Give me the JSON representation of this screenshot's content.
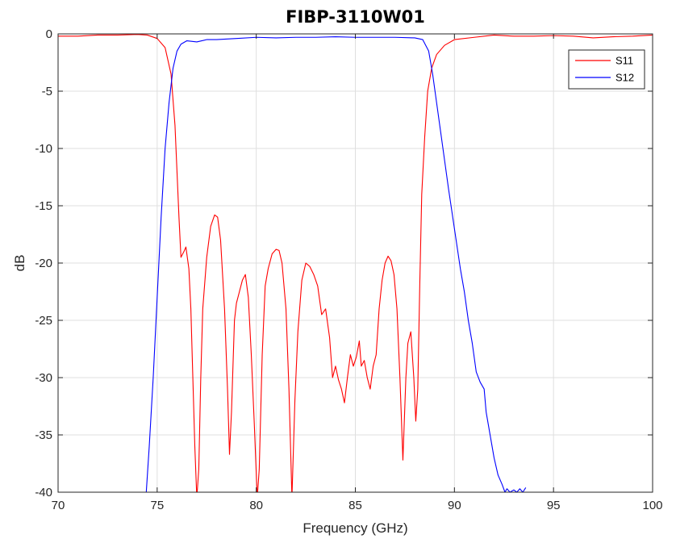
{
  "chart_data": {
    "type": "line",
    "title": "FIBP-3110W01",
    "xlabel": "Frequency (GHz)",
    "ylabel": "dB",
    "xlim": [
      70,
      100
    ],
    "ylim": [
      -40,
      0
    ],
    "xticks": [
      70,
      75,
      80,
      85,
      90,
      95,
      100
    ],
    "yticks": [
      0,
      -5,
      -10,
      -15,
      -20,
      -25,
      -30,
      -35,
      -40
    ],
    "xtick_labels": [
      "70",
      "75",
      "80",
      "85",
      "90",
      "95",
      "100"
    ],
    "ytick_labels": [
      "0",
      "-5",
      "-10",
      "-15",
      "-20",
      "-25",
      "-30",
      "-35",
      "-40"
    ],
    "grid": true,
    "legend_position": "top-right",
    "series": [
      {
        "name": "S11",
        "color": "#ff0000",
        "points": [
          [
            70,
            -0.2
          ],
          [
            71,
            -0.2
          ],
          [
            72,
            -0.1
          ],
          [
            73,
            -0.1
          ],
          [
            74,
            -0.05
          ],
          [
            74.5,
            -0.1
          ],
          [
            75,
            -0.4
          ],
          [
            75.4,
            -1.2
          ],
          [
            75.7,
            -3.5
          ],
          [
            75.9,
            -8
          ],
          [
            76,
            -12
          ],
          [
            76.1,
            -16
          ],
          [
            76.2,
            -19.5
          ],
          [
            76.35,
            -19
          ],
          [
            76.45,
            -18.6
          ],
          [
            76.6,
            -20.5
          ],
          [
            76.7,
            -24
          ],
          [
            76.8,
            -30
          ],
          [
            76.9,
            -36
          ],
          [
            77,
            -40.5
          ],
          [
            77.1,
            -38
          ],
          [
            77.2,
            -30
          ],
          [
            77.3,
            -24
          ],
          [
            77.5,
            -19.5
          ],
          [
            77.7,
            -16.8
          ],
          [
            77.9,
            -15.8
          ],
          [
            78.05,
            -16
          ],
          [
            78.2,
            -18
          ],
          [
            78.4,
            -24
          ],
          [
            78.55,
            -31
          ],
          [
            78.65,
            -36.7
          ],
          [
            78.75,
            -33
          ],
          [
            78.9,
            -25
          ],
          [
            79.0,
            -23.5
          ],
          [
            79.15,
            -22.5
          ],
          [
            79.3,
            -21.5
          ],
          [
            79.45,
            -21
          ],
          [
            79.6,
            -23
          ],
          [
            79.75,
            -28
          ],
          [
            79.9,
            -34
          ],
          [
            80.05,
            -40.5
          ],
          [
            80.15,
            -38
          ],
          [
            80.3,
            -28
          ],
          [
            80.45,
            -22
          ],
          [
            80.6,
            -20.5
          ],
          [
            80.8,
            -19.2
          ],
          [
            81.0,
            -18.8
          ],
          [
            81.15,
            -18.9
          ],
          [
            81.3,
            -20
          ],
          [
            81.5,
            -24
          ],
          [
            81.65,
            -31
          ],
          [
            81.8,
            -40.5
          ],
          [
            81.95,
            -32
          ],
          [
            82.1,
            -26
          ],
          [
            82.3,
            -21.5
          ],
          [
            82.5,
            -20
          ],
          [
            82.7,
            -20.3
          ],
          [
            82.9,
            -21
          ],
          [
            83.1,
            -22
          ],
          [
            83.3,
            -24.5
          ],
          [
            83.5,
            -24
          ],
          [
            83.7,
            -26.5
          ],
          [
            83.85,
            -30
          ],
          [
            84.0,
            -29
          ],
          [
            84.15,
            -30.2
          ],
          [
            84.3,
            -31
          ],
          [
            84.45,
            -32.2
          ],
          [
            84.6,
            -30
          ],
          [
            84.75,
            -28
          ],
          [
            84.9,
            -29
          ],
          [
            85.05,
            -28.2
          ],
          [
            85.2,
            -26.8
          ],
          [
            85.3,
            -29
          ],
          [
            85.45,
            -28.5
          ],
          [
            85.6,
            -30
          ],
          [
            85.75,
            -31
          ],
          [
            85.9,
            -29
          ],
          [
            86.05,
            -28
          ],
          [
            86.2,
            -24
          ],
          [
            86.35,
            -21.5
          ],
          [
            86.5,
            -20
          ],
          [
            86.65,
            -19.4
          ],
          [
            86.8,
            -19.8
          ],
          [
            86.95,
            -21
          ],
          [
            87.1,
            -24
          ],
          [
            87.25,
            -30
          ],
          [
            87.4,
            -37.2
          ],
          [
            87.55,
            -30
          ],
          [
            87.65,
            -27
          ],
          [
            87.8,
            -26
          ],
          [
            87.95,
            -30
          ],
          [
            88.05,
            -33.8
          ],
          [
            88.15,
            -31
          ],
          [
            88.25,
            -22
          ],
          [
            88.35,
            -14
          ],
          [
            88.5,
            -9
          ],
          [
            88.65,
            -5
          ],
          [
            88.85,
            -3
          ],
          [
            89.1,
            -1.8
          ],
          [
            89.5,
            -1
          ],
          [
            90,
            -0.5
          ],
          [
            91,
            -0.3
          ],
          [
            92,
            -0.1
          ],
          [
            93,
            -0.2
          ],
          [
            94,
            -0.2
          ],
          [
            95,
            -0.15
          ],
          [
            96,
            -0.2
          ],
          [
            97,
            -0.35
          ],
          [
            98,
            -0.25
          ],
          [
            99,
            -0.2
          ],
          [
            100,
            -0.1
          ]
        ]
      },
      {
        "name": "S12",
        "color": "#0000ff",
        "points": [
          [
            74.45,
            -40
          ],
          [
            74.6,
            -36
          ],
          [
            74.8,
            -30
          ],
          [
            75.0,
            -23
          ],
          [
            75.2,
            -16
          ],
          [
            75.4,
            -10
          ],
          [
            75.6,
            -6
          ],
          [
            75.8,
            -3
          ],
          [
            76.0,
            -1.5
          ],
          [
            76.2,
            -0.9
          ],
          [
            76.5,
            -0.6
          ],
          [
            77,
            -0.7
          ],
          [
            77.5,
            -0.5
          ],
          [
            78,
            -0.5
          ],
          [
            79,
            -0.4
          ],
          [
            80,
            -0.3
          ],
          [
            81,
            -0.35
          ],
          [
            82,
            -0.3
          ],
          [
            83,
            -0.3
          ],
          [
            84,
            -0.25
          ],
          [
            85,
            -0.3
          ],
          [
            86,
            -0.3
          ],
          [
            87,
            -0.3
          ],
          [
            88,
            -0.35
          ],
          [
            88.4,
            -0.5
          ],
          [
            88.7,
            -1.5
          ],
          [
            88.9,
            -3.5
          ],
          [
            89.1,
            -6
          ],
          [
            89.3,
            -8.5
          ],
          [
            89.5,
            -11
          ],
          [
            89.7,
            -13.5
          ],
          [
            90.0,
            -17
          ],
          [
            90.3,
            -20.5
          ],
          [
            90.5,
            -22.5
          ],
          [
            90.7,
            -25
          ],
          [
            90.9,
            -27
          ],
          [
            91.1,
            -29.5
          ],
          [
            91.3,
            -30.4
          ],
          [
            91.5,
            -31
          ],
          [
            91.6,
            -33
          ],
          [
            91.8,
            -35
          ],
          [
            92.0,
            -37
          ],
          [
            92.2,
            -38.5
          ],
          [
            92.4,
            -39.3
          ],
          [
            92.55,
            -40
          ],
          [
            92.65,
            -39.7
          ],
          [
            92.8,
            -40
          ],
          [
            93.0,
            -39.8
          ],
          [
            93.15,
            -40
          ],
          [
            93.3,
            -39.7
          ],
          [
            93.45,
            -40
          ],
          [
            93.6,
            -39.6
          ]
        ]
      }
    ]
  }
}
